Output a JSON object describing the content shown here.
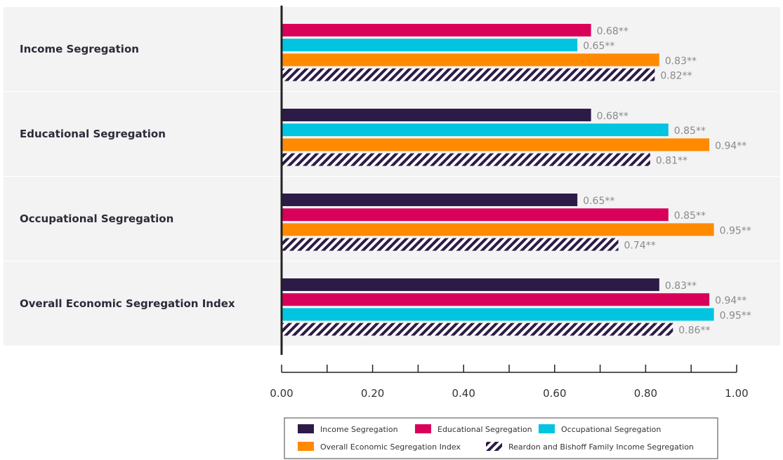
{
  "chart_data": {
    "type": "bar",
    "orientation": "horizontal",
    "xlim": [
      0,
      1.0
    ],
    "x_ticks": [
      "0.00",
      "0.20",
      "0.40",
      "0.60",
      "0.80",
      "1.00"
    ],
    "legend_position": "bottom",
    "series_styles": {
      "Income Segregation": {
        "color": "#2d1b47",
        "pattern": "solid"
      },
      "Educational Segregation": {
        "color": "#d9005a",
        "pattern": "solid"
      },
      "Occupational Segregation": {
        "color": "#00c4e0",
        "pattern": "solid"
      },
      "Overall Economic Segregation Index": {
        "color": "#ff8a00",
        "pattern": "solid"
      },
      "Reardon and Bishoff Family Income Segregation": {
        "color": "#2d1b47",
        "pattern": "hatched"
      }
    },
    "legend": [
      "Income Segregation",
      "Educational Segregation",
      "Occupational Segregation",
      "Overall Economic Segregation Index",
      "Reardon and Bishoff Family Income Segregation"
    ],
    "groups": [
      {
        "label": "Income Segregation",
        "bars": [
          {
            "series": "Educational Segregation",
            "value": 0.68,
            "label": "0.68**"
          },
          {
            "series": "Occupational Segregation",
            "value": 0.65,
            "label": "0.65**"
          },
          {
            "series": "Overall Economic Segregation Index",
            "value": 0.83,
            "label": "0.83**"
          },
          {
            "series": "Reardon and Bishoff Family Income Segregation",
            "value": 0.82,
            "label": "0.82**"
          }
        ]
      },
      {
        "label": "Educational Segregation",
        "bars": [
          {
            "series": "Income Segregation",
            "value": 0.68,
            "label": "0.68**"
          },
          {
            "series": "Occupational Segregation",
            "value": 0.85,
            "label": "0.85**"
          },
          {
            "series": "Overall Economic Segregation Index",
            "value": 0.94,
            "label": "0.94**"
          },
          {
            "series": "Reardon and Bishoff Family Income Segregation",
            "value": 0.81,
            "label": "0.81**"
          }
        ]
      },
      {
        "label": "Occupational Segregation",
        "bars": [
          {
            "series": "Income Segregation",
            "value": 0.65,
            "label": "0.65**"
          },
          {
            "series": "Educational Segregation",
            "value": 0.85,
            "label": "0.85**"
          },
          {
            "series": "Overall Economic Segregation Index",
            "value": 0.95,
            "label": "0.95**"
          },
          {
            "series": "Reardon and Bishoff Family Income Segregation",
            "value": 0.74,
            "label": "0.74**"
          }
        ]
      },
      {
        "label": "Overall Economic Segregation Index",
        "bars": [
          {
            "series": "Income Segregation",
            "value": 0.83,
            "label": "0.83**"
          },
          {
            "series": "Educational Segregation",
            "value": 0.94,
            "label": "0.94**"
          },
          {
            "series": "Occupational Segregation",
            "value": 0.95,
            "label": "0.95**"
          },
          {
            "series": "Reardon and Bishoff Family Income Segregation",
            "value": 0.86,
            "label": "0.86**"
          }
        ]
      }
    ]
  }
}
